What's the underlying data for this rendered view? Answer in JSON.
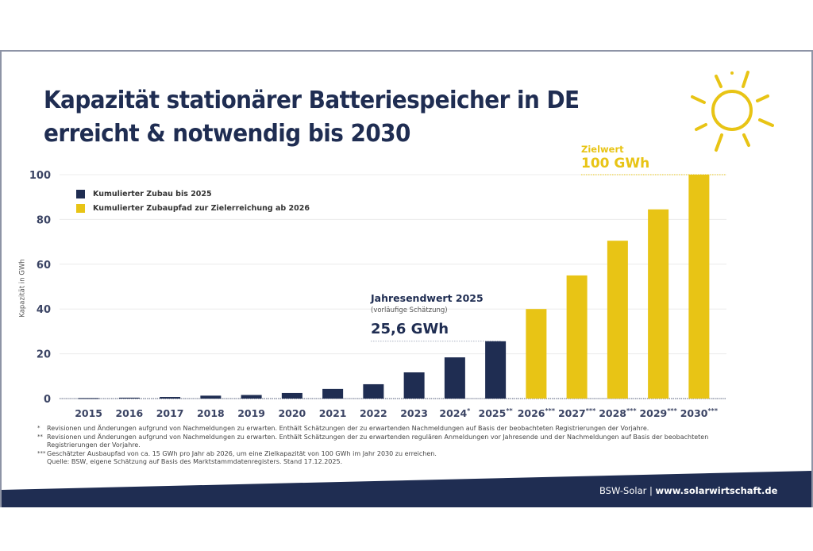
{
  "header": {
    "title_line1": "Kapazität stationärer Batteriespeicher in DE",
    "title_line2": "erreicht & notwendig bis 2030"
  },
  "icons": {
    "sun": "sun-icon"
  },
  "colors": {
    "navy": "#1f2d52",
    "yellow": "#e8c415",
    "grid": "#ececec"
  },
  "legend": [
    {
      "label": "Kumulierter Zubau bis 2025",
      "color": "#1f2d52"
    },
    {
      "label": "Kumulierter Zubaupfad zur Zielerreichung ab 2026",
      "color": "#e8c415"
    }
  ],
  "annotations": {
    "year_end_title": "Jahresendwert 2025",
    "year_end_sub": "(vorläufige Schätzung)",
    "year_end_value": "25,6 GWh",
    "target_title": "Zielwert",
    "target_value": "100 GWh"
  },
  "chart_data": {
    "type": "bar",
    "title": "Kapazität stationärer Batteriespeicher in DE erreicht & notwendig bis 2030",
    "xlabel": "",
    "ylabel": "Kapazität in GWh",
    "ylim": [
      0,
      100
    ],
    "yticks": [
      0,
      20,
      40,
      60,
      80,
      100
    ],
    "grid": true,
    "legend_position": "top-left",
    "categories": [
      "2015",
      "2016",
      "2017",
      "2018",
      "2019",
      "2020",
      "2021",
      "2022",
      "2023",
      "2024*",
      "2025**",
      "2026***",
      "2027***",
      "2028***",
      "2029***",
      "2030***"
    ],
    "series": [
      {
        "name": "Kumulierter Zubau bis 2025",
        "color": "#1f2d52",
        "values": [
          0.2,
          0.4,
          0.7,
          1.3,
          1.6,
          2.5,
          4.3,
          6.4,
          11.7,
          18.4,
          25.6,
          null,
          null,
          null,
          null,
          null
        ]
      },
      {
        "name": "Kumulierter Zubaupfad zur Zielerreichung ab 2026",
        "color": "#e8c415",
        "values": [
          null,
          null,
          null,
          null,
          null,
          null,
          null,
          null,
          null,
          null,
          null,
          40,
          55,
          70.5,
          84.5,
          100
        ]
      }
    ],
    "reference_lines": [
      {
        "label": "Jahresendwert 2025: 25,6 GWh",
        "value": 25.6
      },
      {
        "label": "Zielwert 100 GWh",
        "value": 100
      }
    ]
  },
  "footnotes": [
    {
      "marker": "*",
      "text": "Revisionen und Änderungen aufgrund von Nachmeldungen zu erwarten. Enthält Schätzungen der zu erwartenden Nachmeldungen auf Basis der beobachteten Registrierungen der Vorjahre."
    },
    {
      "marker": "**",
      "text": "Revisionen und Änderungen aufgrund von Nachmeldungen zu erwarten. Enthält Schätzungen der zu erwartenden regulären Anmeldungen vor Jahresende und der Nachmeldungen auf Basis der beobachteten Registrierungen der Vorjahre."
    },
    {
      "marker": "***",
      "text": "Geschätzter Ausbaupfad von ca. 15 GWh pro Jahr ab 2026, um eine Zielkapazität von 100 GWh im Jahr 2030 zu erreichen."
    },
    {
      "marker": "",
      "text": "Quelle: BSW, eigene Schätzung auf Basis des Marktstammdatenregisters. Stand 17.12.2025."
    }
  ],
  "footer": {
    "brand": "BSW-Solar",
    "separator": "|",
    "url": "www.solarwirtschaft.de"
  }
}
